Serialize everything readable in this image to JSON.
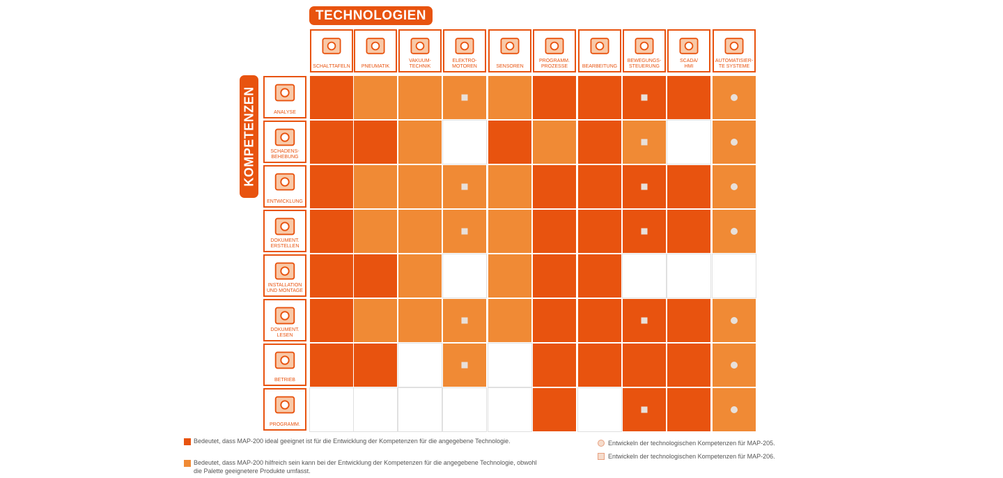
{
  "header": {
    "technologien": "TECHNOLOGIEN",
    "kompetenzen": "KOMPETENZEN"
  },
  "columns": [
    {
      "label": "SCHALTTAFELN",
      "icon": "switch-cabinet-icon"
    },
    {
      "label": "PNEUMATIK",
      "icon": "pneumatic-cylinder-icon"
    },
    {
      "label": "VAKUUM-\nTECHNIK",
      "icon": "vacuum-cup-icon"
    },
    {
      "label": "ELEKTRO-\nMOTOREN",
      "icon": "electric-motor-icon"
    },
    {
      "label": "SENSOREN",
      "icon": "sensor-icon"
    },
    {
      "label": "PROGRAMM.\nPROZESSE",
      "icon": "plc-icon"
    },
    {
      "label": "BEARBEITUNG",
      "icon": "machining-icon"
    },
    {
      "label": "BEWEGUNGS-\nSTEUERUNG",
      "icon": "motion-control-icon"
    },
    {
      "label": "SCADA/\nHMI",
      "icon": "scada-monitor-icon"
    },
    {
      "label": "AUTOMATISIER-\nTE SYSTEME",
      "icon": "automated-system-icon"
    }
  ],
  "rows": [
    {
      "label": "ANALYSE",
      "icon": "magnifier-book-icon"
    },
    {
      "label": "SCHADENS-\nBEHEBUNG",
      "icon": "tools-repair-icon"
    },
    {
      "label": "ENTWICKLUNG",
      "icon": "drafting-icon"
    },
    {
      "label": "DOKUMENT.\nERSTELLEN",
      "icon": "write-document-icon"
    },
    {
      "label": "INSTALLATION\nUND MONTAGE",
      "icon": "hammer-wrench-icon"
    },
    {
      "label": "DOKUMENT.\nLESEN",
      "icon": "reading-glasses-icon"
    },
    {
      "label": "BETRIEB",
      "icon": "hand-lever-icon"
    },
    {
      "label": "PROGRAMM.",
      "icon": "laptop-hands-icon"
    }
  ],
  "matrix": [
    [
      "D",
      "L",
      "L",
      "L",
      "L",
      "D",
      "D",
      "D",
      "D",
      "L"
    ],
    [
      "D",
      "D",
      "L",
      "E",
      "D",
      "L",
      "D",
      "L",
      "E",
      "L"
    ],
    [
      "D",
      "L",
      "L",
      "L",
      "L",
      "D",
      "D",
      "D",
      "D",
      "L"
    ],
    [
      "D",
      "L",
      "L",
      "L",
      "L",
      "D",
      "D",
      "D",
      "D",
      "L"
    ],
    [
      "D",
      "D",
      "L",
      "E",
      "L",
      "D",
      "D",
      "E",
      "E",
      "E"
    ],
    [
      "D",
      "L",
      "L",
      "L",
      "L",
      "D",
      "D",
      "D",
      "D",
      "L"
    ],
    [
      "D",
      "D",
      "E",
      "L",
      "E",
      "D",
      "D",
      "D",
      "D",
      "L"
    ],
    [
      "E",
      "E",
      "E",
      "E",
      "E",
      "D",
      "E",
      "D",
      "D",
      "L"
    ]
  ],
  "markers": [
    [
      "",
      "",
      "",
      "sq",
      "",
      "",
      "",
      "sq",
      "",
      "ci"
    ],
    [
      "",
      "",
      "",
      "",
      "",
      "",
      "",
      "sq",
      "",
      "ci"
    ],
    [
      "",
      "",
      "",
      "sq",
      "",
      "",
      "",
      "sq",
      "",
      "ci"
    ],
    [
      "",
      "",
      "",
      "sq",
      "",
      "",
      "",
      "sq",
      "",
      "ci"
    ],
    [
      "",
      "",
      "",
      "",
      "",
      "",
      "",
      "",
      "",
      ""
    ],
    [
      "",
      "",
      "",
      "sq",
      "",
      "",
      "",
      "sq",
      "",
      "ci"
    ],
    [
      "",
      "",
      "",
      "sq",
      "",
      "",
      "",
      "",
      "",
      "ci"
    ],
    [
      "",
      "",
      "",
      "",
      "",
      "",
      "",
      "sq",
      "",
      "ci"
    ]
  ],
  "colors": {
    "dark": "#e8530f",
    "light": "#f08a35",
    "marker": "#e8e0da"
  },
  "legend": {
    "dark_text": "Bedeutet, dass MAP-200 ideal geeignet ist für die Entwicklung der Kompetenzen für die angegebene Technologie.",
    "light_text": "Bedeutet, dass MAP-200 hilfreich sein kann bei der Entwicklung der Kompetenzen für die angegebene Technologie, obwohl die Palette geeignetere Produkte umfasst.",
    "circle_text": "Entwickeln der technologischen Kompetenzen für MAP-205.",
    "square_text": "Entwickeln der technologischen Kompetenzen für MAP-206."
  }
}
